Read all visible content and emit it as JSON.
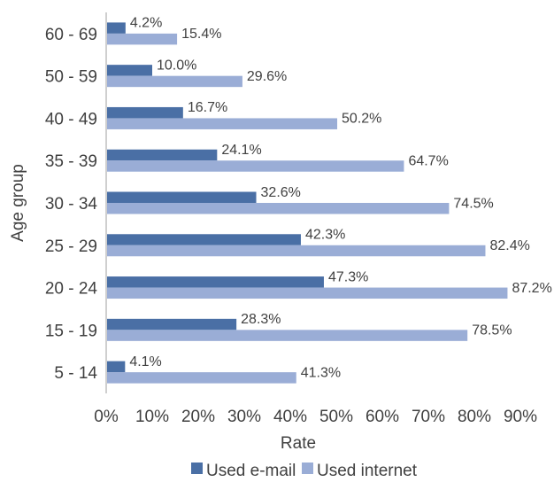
{
  "chart_data": {
    "type": "bar",
    "orientation": "horizontal",
    "title": "",
    "xlabel": "Rate",
    "ylabel": "Age group",
    "xlim": [
      0,
      90
    ],
    "x_ticks": [
      "0%",
      "10%",
      "20%",
      "30%",
      "40%",
      "50%",
      "60%",
      "70%",
      "80%",
      "90%"
    ],
    "categories": [
      "60 - 69",
      "50 - 59",
      "40 - 49",
      "35 - 39",
      "30 - 34",
      "25 - 29",
      "20 - 24",
      "15 - 19",
      "5 - 14"
    ],
    "series": [
      {
        "name": "Used e-mail",
        "color": "#4a6fa5",
        "values": [
          4.2,
          10.0,
          16.7,
          24.1,
          32.6,
          42.3,
          47.3,
          28.3,
          4.1
        ],
        "labels": [
          "4.2%",
          "10.0%",
          "16.7%",
          "24.1%",
          "32.6%",
          "42.3%",
          "47.3%",
          "28.3%",
          "4.1%"
        ]
      },
      {
        "name": "Used internet",
        "color": "#9aadd6",
        "values": [
          15.4,
          29.6,
          50.2,
          64.7,
          74.5,
          82.4,
          87.2,
          78.5,
          41.3
        ],
        "labels": [
          "15.4%",
          "29.6%",
          "50.2%",
          "64.7%",
          "74.5%",
          "82.4%",
          "87.2%",
          "78.5%",
          "41.3%"
        ]
      }
    ],
    "grid": false,
    "legend_position": "bottom"
  }
}
